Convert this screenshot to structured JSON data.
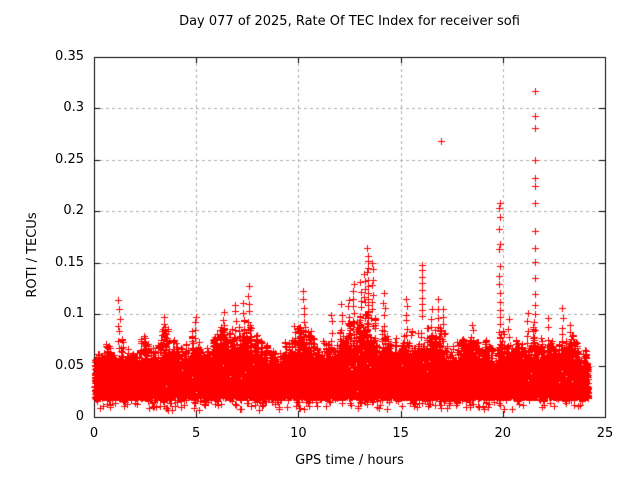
{
  "chart_data": {
    "type": "scatter",
    "title": "Day 077 of 2025, Rate Of TEC Index for receiver sofi",
    "xlabel": "GPS time / hours",
    "ylabel": "ROTI / TECUs",
    "xlim": [
      0,
      25
    ],
    "ylim": [
      0,
      0.35
    ],
    "xticks": {
      "values": [
        0,
        5,
        10,
        15,
        20,
        25
      ],
      "labels": [
        "0",
        "5",
        "10",
        "15",
        "20",
        "25"
      ]
    },
    "yticks": {
      "values": [
        0,
        0.05,
        0.1,
        0.15,
        0.2,
        0.25,
        0.3,
        0.35
      ],
      "labels": [
        "0",
        "0.05",
        "0.1",
        "0.15",
        "0.2",
        "0.25",
        "0.3",
        "0.35"
      ]
    },
    "grid": true,
    "grid_style": "dashed",
    "legend": "none",
    "marker": "plus",
    "marker_size_px": 7,
    "colors": {
      "points": "#ff0000",
      "grid": "#b0b0b0",
      "axis": "#000000",
      "text": "#000000",
      "background": "#ffffff"
    },
    "series_name": "ROTI",
    "approx_point_count": 13000,
    "data_time_range_hours": [
      0.02,
      24.18
    ],
    "band": {
      "bottom": 0.019,
      "low_scatter_min": 0.006,
      "low_scatter_count": 300,
      "top_envelope": [
        [
          0.0,
          0.068
        ],
        [
          0.5,
          0.078
        ],
        [
          0.75,
          0.086
        ],
        [
          1.0,
          0.075
        ],
        [
          1.25,
          0.09
        ],
        [
          1.5,
          0.072
        ],
        [
          2.0,
          0.068
        ],
        [
          2.5,
          0.087
        ],
        [
          3.0,
          0.072
        ],
        [
          3.45,
          0.095
        ],
        [
          3.8,
          0.082
        ],
        [
          4.2,
          0.072
        ],
        [
          4.6,
          0.08
        ],
        [
          5.0,
          0.095
        ],
        [
          5.4,
          0.075
        ],
        [
          5.8,
          0.08
        ],
        [
          6.3,
          0.095
        ],
        [
          6.7,
          0.085
        ],
        [
          7.0,
          0.095
        ],
        [
          7.5,
          0.105
        ],
        [
          7.8,
          0.085
        ],
        [
          8.2,
          0.075
        ],
        [
          8.6,
          0.08
        ],
        [
          9.0,
          0.07
        ],
        [
          9.4,
          0.078
        ],
        [
          9.8,
          0.085
        ],
        [
          10.25,
          0.1
        ],
        [
          10.6,
          0.085
        ],
        [
          11.0,
          0.08
        ],
        [
          11.4,
          0.075
        ],
        [
          11.8,
          0.082
        ],
        [
          12.2,
          0.09
        ],
        [
          12.6,
          0.1
        ],
        [
          13.0,
          0.105
        ],
        [
          13.4,
          0.115
        ],
        [
          13.7,
          0.1
        ],
        [
          14.0,
          0.095
        ],
        [
          14.3,
          0.085
        ],
        [
          14.7,
          0.08
        ],
        [
          15.0,
          0.078
        ],
        [
          15.4,
          0.085
        ],
        [
          15.8,
          0.09
        ],
        [
          16.1,
          0.1
        ],
        [
          16.5,
          0.09
        ],
        [
          16.9,
          0.095
        ],
        [
          17.3,
          0.08
        ],
        [
          17.7,
          0.075
        ],
        [
          18.1,
          0.08
        ],
        [
          18.5,
          0.085
        ],
        [
          19.0,
          0.078
        ],
        [
          19.5,
          0.075
        ],
        [
          19.9,
          0.09
        ],
        [
          20.3,
          0.08
        ],
        [
          20.7,
          0.078
        ],
        [
          21.1,
          0.08
        ],
        [
          21.5,
          0.09
        ],
        [
          21.9,
          0.085
        ],
        [
          22.3,
          0.078
        ],
        [
          22.7,
          0.08
        ],
        [
          23.1,
          0.085
        ],
        [
          23.5,
          0.082
        ],
        [
          23.8,
          0.075
        ],
        [
          24.18,
          0.068
        ]
      ]
    },
    "spikes": [
      [
        1.22,
        0.112
      ],
      [
        3.42,
        0.098
      ],
      [
        4.95,
        0.0985
      ],
      [
        6.35,
        0.1
      ],
      [
        6.9,
        0.109
      ],
      [
        7.3,
        0.11
      ],
      [
        7.55,
        0.127
      ],
      [
        9.8,
        0.09
      ],
      [
        10.25,
        0.124
      ],
      [
        11.6,
        0.1
      ],
      [
        12.1,
        0.109
      ],
      [
        12.45,
        0.115
      ],
      [
        12.7,
        0.13
      ],
      [
        13.05,
        0.13
      ],
      [
        13.25,
        0.14
      ],
      [
        13.6,
        0.15
      ],
      [
        14.2,
        0.12
      ],
      [
        15.3,
        0.115
      ],
      [
        16.5,
        0.105
      ],
      [
        16.85,
        0.115
      ],
      [
        17.1,
        0.105
      ],
      [
        18.5,
        0.09
      ],
      [
        20.3,
        0.095
      ],
      [
        21.2,
        0.1
      ],
      [
        22.2,
        0.095
      ],
      [
        22.9,
        0.105
      ],
      [
        23.3,
        0.09
      ]
    ],
    "outlier_columns": [
      {
        "x": 13.4,
        "values": [
          0.164,
          0.157,
          0.152,
          0.145,
          0.141,
          0.133,
          0.127,
          0.121,
          0.115,
          0.109,
          0.103,
          0.097
        ]
      },
      {
        "x": 16.05,
        "values": [
          0.148,
          0.143,
          0.136,
          0.13,
          0.123,
          0.116,
          0.11,
          0.104,
          0.098
        ]
      },
      {
        "x": 19.85,
        "values": [
          0.208,
          0.203,
          0.194,
          0.183,
          0.168,
          0.163,
          0.147,
          0.137,
          0.129,
          0.121,
          0.112,
          0.104,
          0.097,
          0.09,
          0.083
        ]
      },
      {
        "x": 21.57,
        "values": [
          0.317,
          0.293,
          0.281,
          0.25,
          0.232,
          0.225,
          0.208,
          0.181,
          0.164,
          0.151,
          0.135,
          0.12,
          0.109,
          0.1,
          0.092,
          0.085
        ]
      }
    ],
    "outliers": [
      [
        16.99,
        0.268
      ]
    ]
  }
}
